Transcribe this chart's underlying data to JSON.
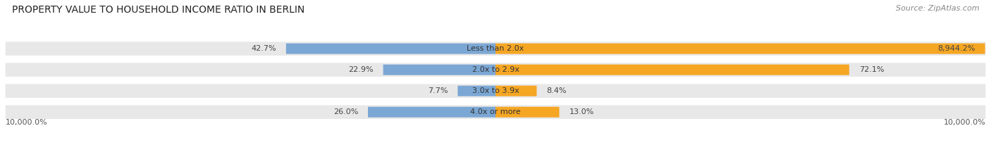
{
  "title": "PROPERTY VALUE TO HOUSEHOLD INCOME RATIO IN BERLIN",
  "source": "Source: ZipAtlas.com",
  "categories": [
    "Less than 2.0x",
    "2.0x to 2.9x",
    "3.0x to 3.9x",
    "4.0x or more"
  ],
  "without_mortgage": [
    42.7,
    22.9,
    7.7,
    26.0
  ],
  "with_mortgage": [
    8944.2,
    72.1,
    8.4,
    13.0
  ],
  "xlim_val": 10000,
  "x_left_label": "10,000.0%",
  "x_right_label": "10,000.0%",
  "color_without": "#7ba7d4",
  "color_with": "#f5a623",
  "bg_bar": "#e8e8e8",
  "bar_height": 0.65,
  "title_fontsize": 10,
  "source_fontsize": 8,
  "label_fontsize": 8,
  "legend_fontsize": 8
}
